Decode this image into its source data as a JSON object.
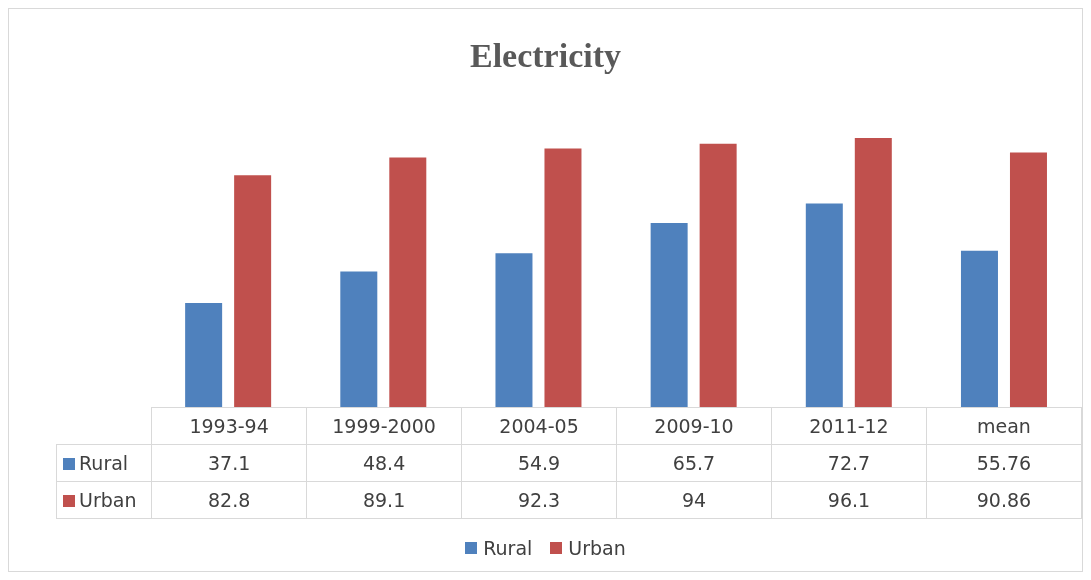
{
  "chart_data": {
    "type": "bar",
    "title": "Electricity",
    "categories": [
      "1993-94",
      "1999-2000",
      "2004-05",
      "2009-10",
      "2011-12",
      "mean"
    ],
    "series": [
      {
        "name": "Rural",
        "color": "#4f81bd",
        "values": [
          37.1,
          48.4,
          54.9,
          65.7,
          72.7,
          55.76
        ]
      },
      {
        "name": "Urban",
        "color": "#c0504d",
        "values": [
          82.8,
          89.1,
          92.3,
          94,
          96.1,
          90.86
        ]
      }
    ],
    "data_labels": true,
    "legend": "bottom"
  }
}
